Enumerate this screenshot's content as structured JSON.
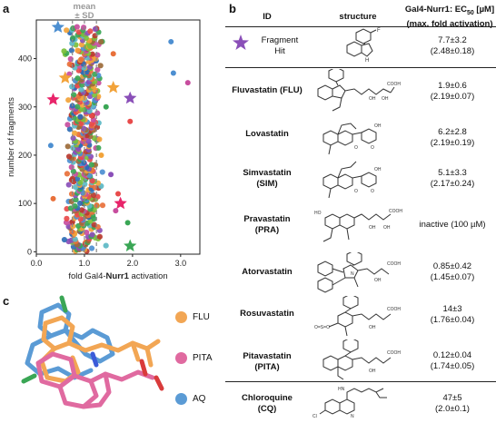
{
  "panel_labels": {
    "a": "a",
    "b": "b",
    "c": "c"
  },
  "chart_data": {
    "type": "scatter",
    "xlabel_pre": "fold Gal4-",
    "xlabel_bold": "Nurr1",
    "xlabel_post": " activation",
    "ylabel": "number of fragments",
    "xlim": [
      0,
      3.4
    ],
    "ylim": [
      -5,
      480
    ],
    "xticks": [
      0.0,
      1.0,
      2.0,
      3.0
    ],
    "xtick_labels": [
      "0.0",
      "1.0",
      "2.0",
      "3.0"
    ],
    "yticks": [
      0,
      100,
      200,
      300,
      400
    ],
    "ytick_labels": [
      "0",
      "100",
      "200",
      "300",
      "400"
    ],
    "annotation": {
      "line1": "mean",
      "line2": "± SD"
    },
    "mean": 1.0,
    "sd_lines": [
      0.75,
      1.25
    ],
    "n_points": 470,
    "colors": [
      "#e8703a",
      "#3aa655",
      "#4d8fd1",
      "#c74d9e",
      "#8a4fb8",
      "#e84b4b",
      "#f2a33a",
      "#2f6db5",
      "#7bbf3a",
      "#b8392f",
      "#5cb8c4",
      "#9c6b3a"
    ],
    "outliers": [
      {
        "x": 2.8,
        "y": 435,
        "color": "#4d8fd1"
      },
      {
        "x": 2.85,
        "y": 370,
        "color": "#4d8fd1"
      },
      {
        "x": 3.15,
        "y": 350,
        "color": "#c74d9e"
      },
      {
        "x": 1.95,
        "y": 270,
        "color": "#e84b4b"
      },
      {
        "x": 1.6,
        "y": 410,
        "color": "#e8703a"
      },
      {
        "x": 1.45,
        "y": 300,
        "color": "#3aa655"
      },
      {
        "x": 1.55,
        "y": 160,
        "color": "#8a4fb8"
      },
      {
        "x": 1.7,
        "y": 120,
        "color": "#e84b4b"
      },
      {
        "x": 1.9,
        "y": 60,
        "color": "#3aa655"
      },
      {
        "x": 1.35,
        "y": 200,
        "color": "#f2a33a"
      },
      {
        "x": 0.3,
        "y": 220,
        "color": "#4d8fd1"
      },
      {
        "x": 0.35,
        "y": 110,
        "color": "#e8703a"
      },
      {
        "x": 1.65,
        "y": 85,
        "color": "#c74d9e"
      }
    ],
    "stars": [
      {
        "x": 0.45,
        "y": 465,
        "color": "#4d8fd1"
      },
      {
        "x": 0.6,
        "y": 360,
        "color": "#f2a33a"
      },
      {
        "x": 0.35,
        "y": 315,
        "color": "#e8246a"
      },
      {
        "x": 1.6,
        "y": 340,
        "color": "#f2a33a"
      },
      {
        "x": 1.95,
        "y": 318,
        "color": "#8a4fb8"
      },
      {
        "x": 1.75,
        "y": 100,
        "color": "#e8246a"
      },
      {
        "x": 1.95,
        "y": 12,
        "color": "#3aa655"
      }
    ]
  },
  "table": {
    "headers": {
      "id": "ID",
      "structure": "structure",
      "ec50_line1": "Gal4-Nurr1: EC",
      "ec50_sub": "50",
      "ec50_unit": " [µM]",
      "ec50_line2": "(max. fold activation)"
    },
    "rows": [
      {
        "name_line1": "Fragment",
        "name_line2": "Hit",
        "act_line1": "7.7±3.2",
        "act_line2": "(2.48±0.18)"
      },
      {
        "name_line1": "Fluvastatin (FLU)",
        "name_line2": "",
        "act_line1": "1.9±0.6",
        "act_line2": "(2.19±0.07)"
      },
      {
        "name_line1": "Lovastatin",
        "name_line2": "",
        "act_line1": "6.2±2.8",
        "act_line2": "(2.19±0.19)"
      },
      {
        "name_line1": "Simvastatin",
        "name_line2": "(SIM)",
        "act_line1": "5.1±3.3",
        "act_line2": "(2.17±0.24)"
      },
      {
        "name_line1": "Pravastatin",
        "name_line2": "(PRA)",
        "act_line1": "inactive (100 µM)",
        "act_line2": ""
      },
      {
        "name_line1": "Atorvastatin",
        "name_line2": "",
        "act_line1": "0.85±0.42",
        "act_line2": "(1.45±0.07)"
      },
      {
        "name_line1": "Rosuvastatin",
        "name_line2": "",
        "act_line1": "14±3",
        "act_line2": "(1.76±0.04)"
      },
      {
        "name_line1": "Pitavastatin",
        "name_line2": "(PITA)",
        "act_line1": "0.12±0.04",
        "act_line2": "(1.74±0.05)"
      },
      {
        "name_line1": "Chloroquine",
        "name_line2": "(CQ)",
        "act_line1": "47±5",
        "act_line2": "(2.0±0.1)"
      }
    ]
  },
  "panel_c": {
    "legend": [
      {
        "label": "FLU",
        "color": "#f2a654"
      },
      {
        "label": "PITA",
        "color": "#e06aa0"
      },
      {
        "label": "AQ",
        "color": "#5b9bd5"
      }
    ]
  }
}
